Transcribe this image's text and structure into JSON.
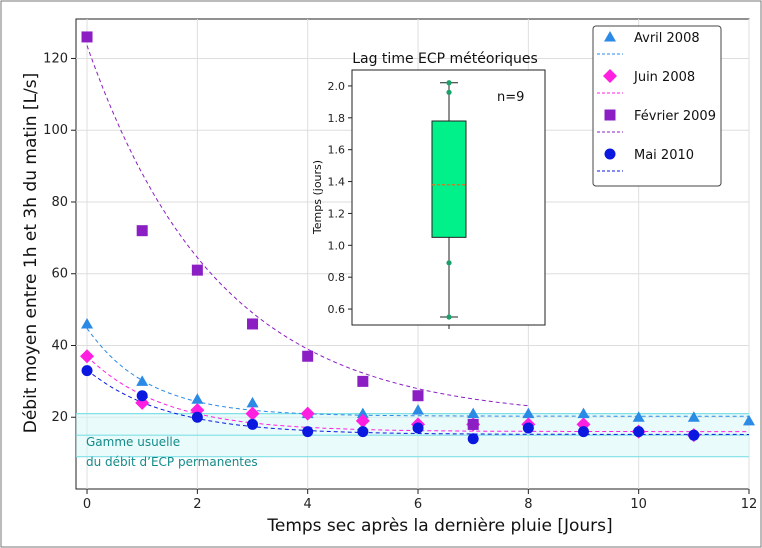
{
  "chart_data": [
    {
      "type": "scatter",
      "xlabel": "Temps sec après la dernière pluie [Jours]",
      "ylabel": "Débit moyen entre 1h et 3h du matin [L/s]",
      "xlim": [
        -0.2,
        12
      ],
      "ylim": [
        0,
        131
      ],
      "xticks": [
        0,
        2,
        4,
        6,
        8,
        10,
        12
      ],
      "yticks": [
        20,
        40,
        60,
        80,
        100,
        120
      ],
      "grid": true,
      "legend_position": "top-right",
      "series": [
        {
          "name": "Avril 2008",
          "marker": "triangle",
          "color": "#2a8ae6",
          "x": [
            0,
            1,
            2,
            3,
            4,
            5,
            6,
            7,
            8,
            9,
            10,
            11,
            12
          ],
          "y": [
            46,
            30,
            25,
            24,
            21,
            21,
            22,
            21,
            21,
            21,
            20,
            20,
            19
          ],
          "fit": {
            "a": 24.5,
            "k": 0.9,
            "c": 20.3,
            "x_end": 12
          }
        },
        {
          "name": "Juin 2008",
          "marker": "diamond",
          "color": "#ff1fe0",
          "x": [
            0,
            1,
            2,
            3,
            4,
            5,
            6,
            7,
            8,
            9,
            10,
            11
          ],
          "y": [
            37,
            24,
            22,
            21,
            21,
            19,
            18,
            18,
            18,
            18,
            16,
            15
          ],
          "fit": {
            "a": 21,
            "k": 0.72,
            "c": 16,
            "x_end": 12
          }
        },
        {
          "name": "Février 2009",
          "marker": "square",
          "color": "#8b1fc4",
          "x": [
            0,
            1,
            2,
            3,
            4,
            5,
            6,
            7
          ],
          "y": [
            126,
            72,
            61,
            46,
            37,
            30,
            26,
            18
          ],
          "fit": {
            "a": 104,
            "k": 0.42,
            "c": 19.6,
            "x_end": 8
          }
        },
        {
          "name": "Mai 2010",
          "marker": "circle",
          "color": "#0a18e0",
          "x": [
            0,
            1,
            2,
            3,
            4,
            5,
            6,
            7,
            8,
            9,
            10,
            11
          ],
          "y": [
            33,
            26,
            20,
            18,
            16,
            16,
            17,
            14,
            17,
            16,
            16,
            15
          ],
          "fit": {
            "a": 18,
            "k": 0.7,
            "c": 15.2,
            "x_end": 12
          }
        }
      ],
      "band": {
        "range": [
          9,
          21
        ],
        "lines": [
          9,
          15,
          21
        ],
        "color": "#7fe0e6",
        "label_lines": [
          "Gamme usuelle",
          "du débit d’ECP permanentes"
        ]
      }
    },
    {
      "type": "box",
      "title": "Lag time ECP météoriques",
      "ylabel": "Temps (jours)",
      "ylim": [
        0.5,
        2.1
      ],
      "yticks": [
        "0.6",
        "0.8",
        "1.0",
        "1.2",
        "1.4",
        "1.6",
        "1.8",
        "2.0"
      ],
      "box": {
        "whisker_low": 0.55,
        "q1": 1.05,
        "median": 1.38,
        "q3": 1.78,
        "whisker_high": 2.02
      },
      "points": [
        0.55,
        0.89,
        1.96,
        2.02
      ],
      "fill": "#00f08a",
      "median_color": "#e07020",
      "annotation": "n=9"
    }
  ]
}
